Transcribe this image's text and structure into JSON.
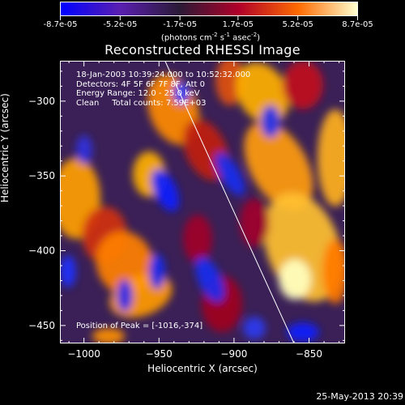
{
  "colorbar": {
    "tick_labels": [
      "-8.7e-05",
      "-5.2e-05",
      "-1.7e-05",
      "1.7e-05",
      "5.2e-05",
      "8.7e-05"
    ],
    "tick_values": [
      -8.7e-05,
      -5.2e-05,
      -1.7e-05,
      1.7e-05,
      5.2e-05,
      8.7e-05
    ],
    "range": [
      -8.7e-05,
      8.7e-05
    ],
    "units_text": "(photons cm",
    "units_sup1": "-2",
    "units_mid": " s",
    "units_sup2": "-1",
    "units_mid2": " asec",
    "units_sup3": "-2",
    "units_end": ")",
    "colors": [
      "#0000ff",
      "#5a1fb0",
      "#2a1a36",
      "#b0002a",
      "#ff6a00",
      "#ffffd0"
    ]
  },
  "chart_data": {
    "type": "heatmap",
    "title": "Reconstructed RHESSI Image",
    "xlabel": "Heliocentric X (arcsec)",
    "ylabel": "Heliocentric Y (arcsec)",
    "xlim": [
      -1016,
      -826
    ],
    "ylim": [
      -462,
      -273
    ],
    "x_ticks": [
      -1000,
      -950,
      -900,
      -850
    ],
    "y_ticks": [
      -300,
      -350,
      -400,
      -450
    ],
    "x_tick_labels": [
      "−1000",
      "−950",
      "−900",
      "−850"
    ],
    "y_tick_labels": [
      "−300",
      "−350",
      "−400",
      "−450"
    ],
    "peak": [
      -1016,
      -374
    ],
    "limb_line": [
      [
        -946,
        -273
      ],
      [
        -860,
        -462
      ]
    ]
  },
  "info": {
    "line1": "18-Jan-2003 10:39:24.000 to 10:52:32.000",
    "line2": "Detectors: 4F 5F 6F 7F 8F, Att 0",
    "line3": "Energy Range: 12.0 - 25.0 keV",
    "line4": "Clean     Total counts: 7.59E+03",
    "peak_label": "Position of Peak = [-1016,-374]"
  },
  "footer": "25-May-2013 20:39"
}
